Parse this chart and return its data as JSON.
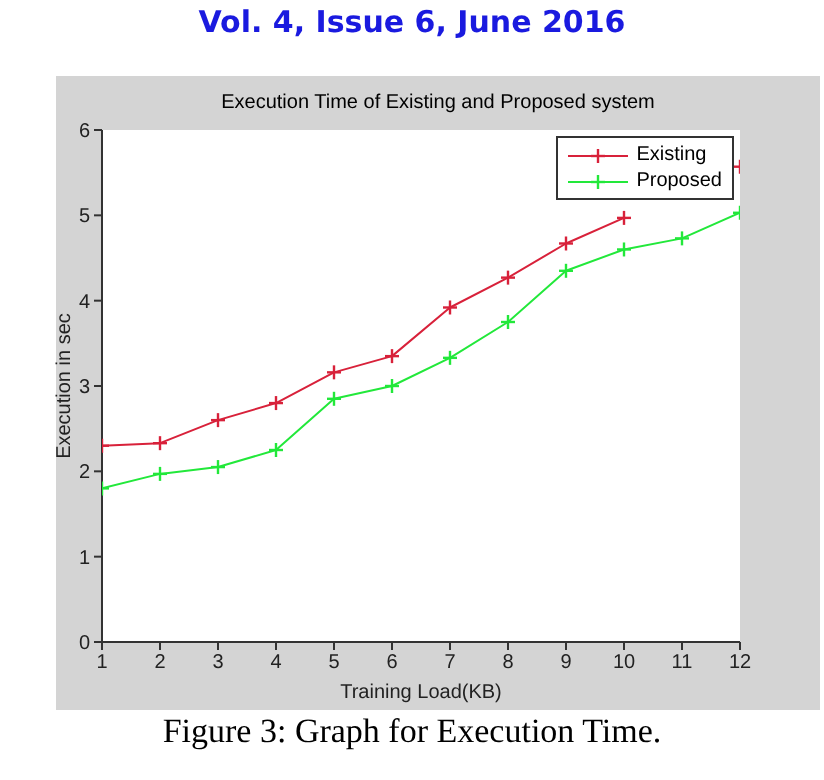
{
  "chart_data": {
    "type": "line",
    "title": "Execution Time of Existing and Proposed system",
    "xlabel": "Training Load(KB)",
    "ylabel": "Execution in sec",
    "annotations": [
      "Vol. 4, Issue 6, June 2016",
      "Figure 3: Graph for Execution Time."
    ],
    "x": [
      1,
      2,
      3,
      4,
      5,
      6,
      7,
      8,
      9,
      10,
      11,
      12
    ],
    "series": [
      {
        "name": "Existing",
        "color": "#d8213a",
        "values": [
          2.3,
          2.33,
          2.6,
          2.8,
          3.16,
          3.35,
          3.92,
          4.27,
          4.67,
          4.97,
          null,
          5.57
        ]
      },
      {
        "name": "Proposed",
        "color": "#22e83a",
        "values": [
          1.8,
          1.97,
          2.05,
          2.25,
          2.85,
          3.0,
          3.33,
          3.75,
          4.35,
          4.6,
          4.73,
          5.03
        ]
      }
    ],
    "xlim": [
      1,
      12
    ],
    "xticks": [
      1,
      2,
      3,
      4,
      5,
      6,
      7,
      8,
      9,
      10,
      11,
      12
    ],
    "ylim": [
      0,
      6
    ],
    "yticks": [
      0,
      1,
      2,
      3,
      4,
      5,
      6
    ],
    "legend": "top right",
    "marker": "cross",
    "line_style": "solid"
  }
}
